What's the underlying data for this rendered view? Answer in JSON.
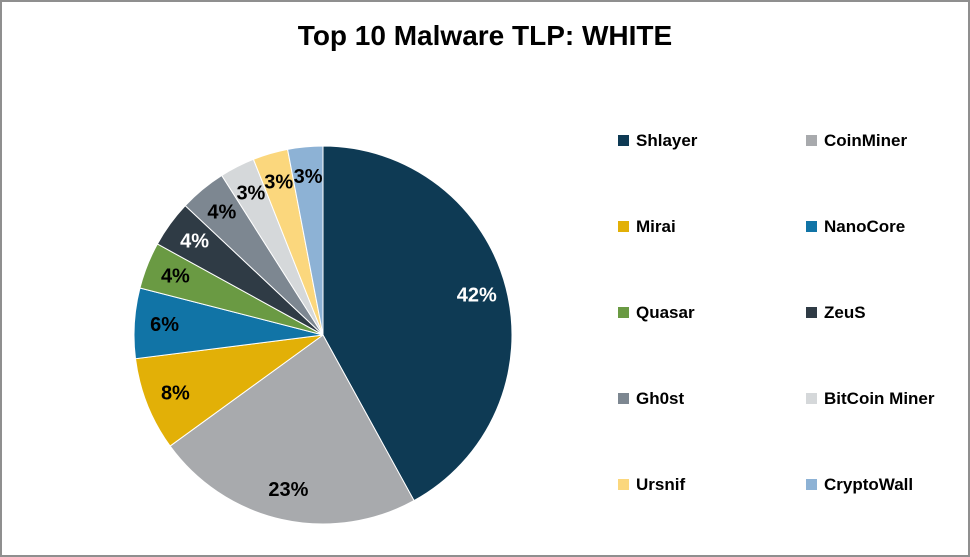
{
  "title": "Top 10 Malware TLP: WHITE",
  "chart_data": {
    "type": "pie",
    "title": "Top 10 Malware TLP: WHITE",
    "start_angle_deg": 0,
    "direction": "clockwise",
    "legend_position": "right",
    "legend_columns": 2,
    "background_color": "#ffffff",
    "border_color": "#8f8f8f",
    "slices": [
      {
        "label": "Shlayer",
        "value": 42,
        "data_label": "42%",
        "color": "#0e3a54",
        "label_color": "#ffffff"
      },
      {
        "label": "CoinMiner",
        "value": 23,
        "data_label": "23%",
        "color": "#a8aaad",
        "label_color": "#000000"
      },
      {
        "label": "Mirai",
        "value": 8,
        "data_label": "8%",
        "color": "#e2b007",
        "label_color": "#000000"
      },
      {
        "label": "NanoCore",
        "value": 6,
        "data_label": "6%",
        "color": "#1174a6",
        "label_color": "#000000"
      },
      {
        "label": "Quasar",
        "value": 4,
        "data_label": "4%",
        "color": "#6a9a43",
        "label_color": "#000000"
      },
      {
        "label": "ZeuS",
        "value": 4,
        "data_label": "4%",
        "color": "#2f3b45",
        "label_color": "#ffffff"
      },
      {
        "label": "Gh0st",
        "value": 4,
        "data_label": "4%",
        "color": "#7d8791",
        "label_color": "#000000"
      },
      {
        "label": "BitCoin Miner",
        "value": 3,
        "data_label": "3%",
        "color": "#d5d8da",
        "label_color": "#000000"
      },
      {
        "label": "Ursnif",
        "value": 3,
        "data_label": "3%",
        "color": "#fbd77d",
        "label_color": "#000000"
      },
      {
        "label": "CryptoWall",
        "value": 3,
        "data_label": "3%",
        "color": "#8db2d5",
        "label_color": "#000000"
      }
    ]
  }
}
